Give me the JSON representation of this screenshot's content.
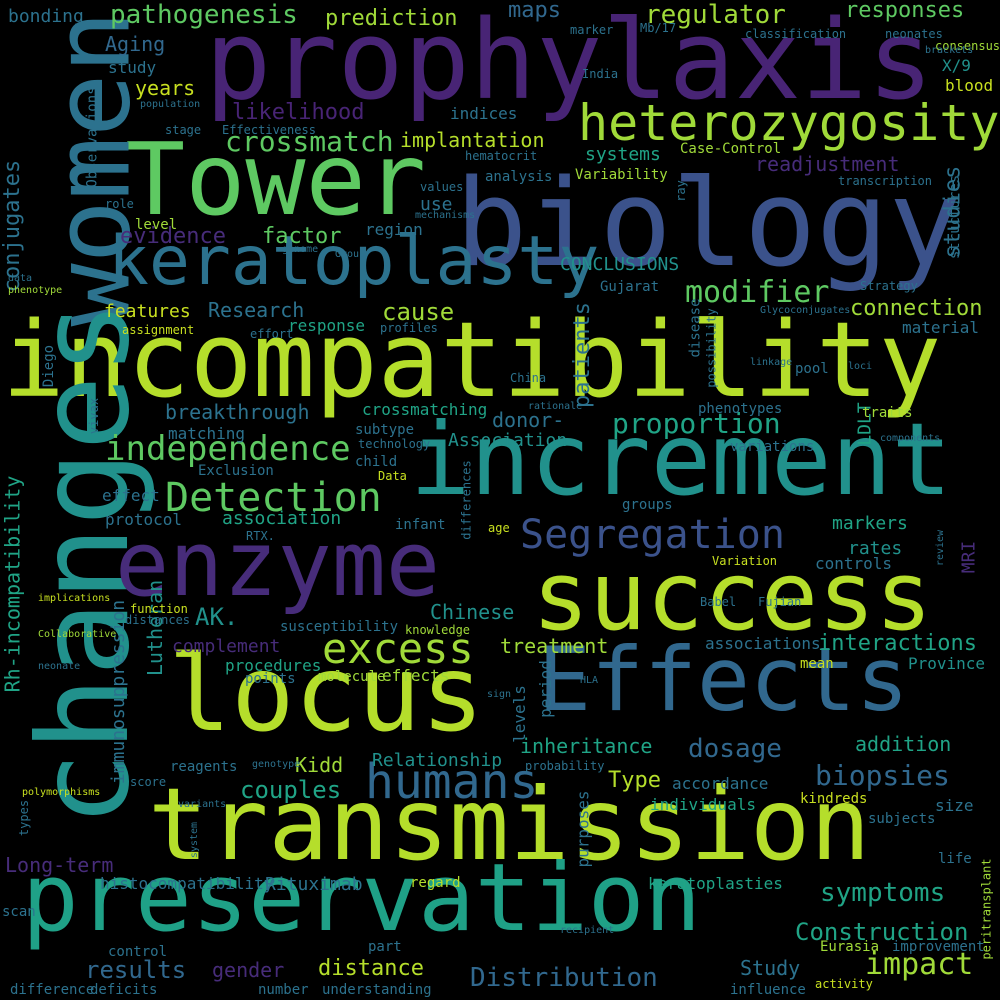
{
  "background": "#000000",
  "words": [
    {
      "text": "prophylaxis",
      "color": "#482475"
    },
    {
      "text": "biology",
      "color": "#3b528b"
    },
    {
      "text": "Tower",
      "color": "#5ec962"
    },
    {
      "text": "women",
      "color": "#2c728e"
    },
    {
      "text": "keratoplasty",
      "color": "#2c728e"
    },
    {
      "text": "heterozygosity",
      "color": "#a0da39"
    },
    {
      "text": "incompatibility",
      "color": "#b5de2b"
    },
    {
      "text": "changes",
      "color": "#21918c"
    },
    {
      "text": "increment",
      "color": "#21918c"
    },
    {
      "text": "enzyme",
      "color": "#472c7a"
    },
    {
      "text": "success",
      "color": "#b5de2b"
    },
    {
      "text": "Effects",
      "color": "#31688e"
    },
    {
      "text": "locus",
      "color": "#b5de2b"
    },
    {
      "text": "transmission",
      "color": "#b5de2b"
    },
    {
      "text": "preservation",
      "color": "#1fa187"
    },
    {
      "text": "humans",
      "color": "#31688e"
    },
    {
      "text": "excess",
      "color": "#a0da39"
    },
    {
      "text": "Detection",
      "color": "#5ec962"
    },
    {
      "text": "Segregation",
      "color": "#3b528b"
    },
    {
      "text": "independence",
      "color": "#5ec962"
    },
    {
      "text": "crossmatch",
      "color": "#5ec962"
    },
    {
      "text": "modifier",
      "color": "#5ec962"
    },
    {
      "text": "pathogenesis",
      "color": "#5ec962"
    },
    {
      "text": "prediction",
      "color": "#a0da39"
    },
    {
      "text": "regulator",
      "color": "#a0da39"
    },
    {
      "text": "responses",
      "color": "#5ec962"
    },
    {
      "text": "maps",
      "color": "#31688e"
    },
    {
      "text": "bonding",
      "color": "#2c728e"
    },
    {
      "text": "Aging",
      "color": "#31688e"
    },
    {
      "text": "study",
      "color": "#2c728e"
    },
    {
      "text": "years",
      "color": "#c8e020"
    },
    {
      "text": "likelihood",
      "color": "#482475"
    },
    {
      "text": "implantation",
      "color": "#b5de2b"
    },
    {
      "text": "conjugates",
      "color": "#2c728e"
    },
    {
      "text": "Rh-incompatibility",
      "color": "#20a486"
    },
    {
      "text": "evidence",
      "color": "#472c7a"
    },
    {
      "text": "factor",
      "color": "#5ec962"
    },
    {
      "text": "use",
      "color": "#2c728e"
    },
    {
      "text": "region",
      "color": "#2c728e"
    },
    {
      "text": "systems",
      "color": "#20a486"
    },
    {
      "text": "readjustment",
      "color": "#472c7a"
    },
    {
      "text": "CONCLUSIONS",
      "color": "#21918c"
    },
    {
      "text": "studies",
      "color": "#2c728e"
    },
    {
      "text": "features",
      "color": "#c8e020"
    },
    {
      "text": "Research",
      "color": "#2c728e"
    },
    {
      "text": "cause",
      "color": "#a0da39"
    },
    {
      "text": "connection",
      "color": "#a0da39"
    },
    {
      "text": "patients",
      "color": "#2c728e"
    },
    {
      "text": "breakthrough",
      "color": "#2c728e"
    },
    {
      "text": "crossmatching",
      "color": "#20a486"
    },
    {
      "text": "proportion",
      "color": "#20a486"
    },
    {
      "text": "LDLT",
      "color": "#20a486"
    },
    {
      "text": "Association",
      "color": "#21918c"
    },
    {
      "text": "donor-",
      "color": "#2c728e"
    },
    {
      "text": "association",
      "color": "#20a486"
    },
    {
      "text": "protocol",
      "color": "#2c728e"
    },
    {
      "text": "markers",
      "color": "#20a486"
    },
    {
      "text": "rates",
      "color": "#21918c"
    },
    {
      "text": "MRI",
      "color": "#472c7a"
    },
    {
      "text": "AK.",
      "color": "#21918c"
    },
    {
      "text": "Chinese",
      "color": "#21918c"
    },
    {
      "text": "treatment",
      "color": "#a0da39"
    },
    {
      "text": "complement",
      "color": "#472c7a"
    },
    {
      "text": "Lutheran",
      "color": "#21918c"
    },
    {
      "text": "immunosuppression",
      "color": "#2c728e"
    },
    {
      "text": "interactions",
      "color": "#20a486"
    },
    {
      "text": "Province",
      "color": "#21918c"
    },
    {
      "text": "associations",
      "color": "#2c728e"
    },
    {
      "text": "procedures",
      "color": "#20a486"
    },
    {
      "text": "effects",
      "color": "#a0da39"
    },
    {
      "text": "inheritance",
      "color": "#20a486"
    },
    {
      "text": "dosage",
      "color": "#31688e"
    },
    {
      "text": "addition",
      "color": "#20a486"
    },
    {
      "text": "biopsies",
      "color": "#31688e"
    },
    {
      "text": "couples",
      "color": "#20a486"
    },
    {
      "text": "Kidd",
      "color": "#a0da39"
    },
    {
      "text": "Relationship",
      "color": "#21918c"
    },
    {
      "text": "Type",
      "color": "#b5de2b"
    },
    {
      "text": "symptoms",
      "color": "#20a486"
    },
    {
      "text": "Construction",
      "color": "#20a486"
    },
    {
      "text": "impact",
      "color": "#a0da39"
    },
    {
      "text": "Long-term",
      "color": "#472c7a"
    },
    {
      "text": "histocompatibility",
      "color": "#2c728e"
    },
    {
      "text": "Rituximab",
      "color": "#2c728e"
    },
    {
      "text": "keratoplasties",
      "color": "#20a486"
    },
    {
      "text": "results",
      "color": "#31688e"
    },
    {
      "text": "gender",
      "color": "#472c7a"
    },
    {
      "text": "distance",
      "color": "#b5de2b"
    },
    {
      "text": "Distribution",
      "color": "#31688e"
    },
    {
      "text": "Study",
      "color": "#2c728e"
    },
    {
      "text": "kindreds",
      "color": "#c8e020"
    },
    {
      "text": "size",
      "color": "#2c728e"
    },
    {
      "text": "deficits",
      "color": "#2c728e"
    },
    {
      "text": "number",
      "color": "#2c728e"
    },
    {
      "text": "understanding",
      "color": "#2c728e"
    },
    {
      "text": "influence",
      "color": "#2c728e"
    },
    {
      "text": "activity",
      "color": "#c8e020"
    },
    {
      "text": "regard",
      "color": "#b5de2b"
    },
    {
      "text": "blood",
      "color": "#c8e020"
    },
    {
      "text": "X/9",
      "color": "#21918c"
    },
    {
      "text": "structures",
      "color": "#2c728e"
    },
    {
      "text": "consensus",
      "color": "#a0da39"
    },
    {
      "text": "brackets",
      "color": "#2c728e"
    },
    {
      "text": "neonates",
      "color": "#2c728e"
    },
    {
      "text": "classification",
      "color": "#2c728e"
    },
    {
      "text": "Mb/17",
      "color": "#2c728e"
    },
    {
      "text": "marker",
      "color": "#2c728e"
    },
    {
      "text": "India",
      "color": "#2c728e"
    },
    {
      "text": "indices",
      "color": "#2c728e"
    },
    {
      "text": "population",
      "color": "#2c728e"
    },
    {
      "text": "Observations",
      "color": "#2c728e"
    },
    {
      "text": "stage",
      "color": "#2c728e"
    },
    {
      "text": "Effectiveness",
      "color": "#2c728e"
    },
    {
      "text": "hematocrit",
      "color": "#2c728e"
    },
    {
      "text": "Case-Control",
      "color": "#a0da39"
    },
    {
      "text": "analysis",
      "color": "#2c728e"
    },
    {
      "text": "Variability",
      "color": "#a0da39"
    },
    {
      "text": "transcription",
      "color": "#2c728e"
    },
    {
      "text": "ray",
      "color": "#2c728e"
    },
    {
      "text": "values",
      "color": "#2c728e"
    },
    {
      "text": "mechanisms",
      "color": "#2c728e"
    },
    {
      "text": "role",
      "color": "#2c728e"
    },
    {
      "text": "level",
      "color": "#a0da39"
    },
    {
      "text": "genome",
      "color": "#2c728e"
    },
    {
      "text": "Group",
      "color": "#2c728e"
    },
    {
      "text": "data",
      "color": "#2c728e"
    },
    {
      "text": "phenotype",
      "color": "#a0da39"
    },
    {
      "text": "Gujarat",
      "color": "#2c728e"
    },
    {
      "text": "Strategy",
      "color": "#2c728e"
    },
    {
      "text": "assignment",
      "color": "#c8e020"
    },
    {
      "text": "effort",
      "color": "#2c728e"
    },
    {
      "text": "profiles",
      "color": "#2c728e"
    },
    {
      "text": "disease",
      "color": "#2c728e"
    },
    {
      "text": "Glycoconjugates",
      "color": "#2c728e"
    },
    {
      "text": "material",
      "color": "#2c728e"
    },
    {
      "text": "response",
      "color": "#20a486"
    },
    {
      "text": "possibility",
      "color": "#2c728e"
    },
    {
      "text": "linkage",
      "color": "#2c728e"
    },
    {
      "text": "pool",
      "color": "#2c728e"
    },
    {
      "text": "loci",
      "color": "#2c728e"
    },
    {
      "text": "Diego",
      "color": "#2c728e"
    },
    {
      "text": "China",
      "color": "#2c728e"
    },
    {
      "text": "vivax",
      "color": "#2c728e"
    },
    {
      "text": "rationale",
      "color": "#2c728e"
    },
    {
      "text": "phenotypes",
      "color": "#2c728e"
    },
    {
      "text": "traits",
      "color": "#a0da39"
    },
    {
      "text": "matching",
      "color": "#2c728e"
    },
    {
      "text": "subtype",
      "color": "#2c728e"
    },
    {
      "text": "technology",
      "color": "#2c728e"
    },
    {
      "text": "components",
      "color": "#2c728e"
    },
    {
      "text": "variations",
      "color": "#2c728e"
    },
    {
      "text": "Exclusion",
      "color": "#2c728e"
    },
    {
      "text": "child",
      "color": "#2c728e"
    },
    {
      "text": "Data",
      "color": "#c8e020"
    },
    {
      "text": "differences",
      "color": "#2c728e"
    },
    {
      "text": "effect",
      "color": "#2c728e"
    },
    {
      "text": "infant",
      "color": "#2c728e"
    },
    {
      "text": "age",
      "color": "#c8e020"
    },
    {
      "text": "groups",
      "color": "#2c728e"
    },
    {
      "text": "RTX.",
      "color": "#2c728e"
    },
    {
      "text": "review",
      "color": "#2c728e"
    },
    {
      "text": "controls",
      "color": "#2c728e"
    },
    {
      "text": "implications",
      "color": "#c8e020"
    },
    {
      "text": "function",
      "color": "#c8e020"
    },
    {
      "text": "distances",
      "color": "#2c728e"
    },
    {
      "text": "susceptibility",
      "color": "#2c728e"
    },
    {
      "text": "knowledge",
      "color": "#a0da39"
    },
    {
      "text": "Collaborative",
      "color": "#a0da39"
    },
    {
      "text": "Babel",
      "color": "#2c728e"
    },
    {
      "text": "Fujian",
      "color": "#2c728e"
    },
    {
      "text": "Variation",
      "color": "#c8e020"
    },
    {
      "text": "neonate",
      "color": "#2c728e"
    },
    {
      "text": "points",
      "color": "#2c728e"
    },
    {
      "text": "molecule",
      "color": "#a0da39"
    },
    {
      "text": "sign",
      "color": "#2c728e"
    },
    {
      "text": "HLA",
      "color": "#2c728e"
    },
    {
      "text": "period",
      "color": "#2c728e"
    },
    {
      "text": "levels",
      "color": "#2c728e"
    },
    {
      "text": "mean",
      "color": "#c8e020"
    },
    {
      "text": "reagents",
      "color": "#2c728e"
    },
    {
      "text": "genotype",
      "color": "#2c728e"
    },
    {
      "text": "probability",
      "color": "#2c728e"
    },
    {
      "text": "polymorphisms",
      "color": "#c8e020"
    },
    {
      "text": "score",
      "color": "#2c728e"
    },
    {
      "text": "variants",
      "color": "#2c728e"
    },
    {
      "text": "purposes",
      "color": "#2c728e"
    },
    {
      "text": "accordance",
      "color": "#2c728e"
    },
    {
      "text": "individuals",
      "color": "#20a486"
    },
    {
      "text": "subjects",
      "color": "#2c728e"
    },
    {
      "text": "types",
      "color": "#2c728e"
    },
    {
      "text": "system",
      "color": "#2c728e"
    },
    {
      "text": "life",
      "color": "#2c728e"
    },
    {
      "text": "peritransplant",
      "color": "#a0da39"
    },
    {
      "text": "scan",
      "color": "#2c728e"
    },
    {
      "text": "control",
      "color": "#2c728e"
    },
    {
      "text": "part",
      "color": "#2c728e"
    },
    {
      "text": "recipient",
      "color": "#2c728e"
    },
    {
      "text": "Eurasia",
      "color": "#a0da39"
    },
    {
      "text": "improvement",
      "color": "#2c728e"
    },
    {
      "text": "difference",
      "color": "#2c728e"
    }
  ]
}
